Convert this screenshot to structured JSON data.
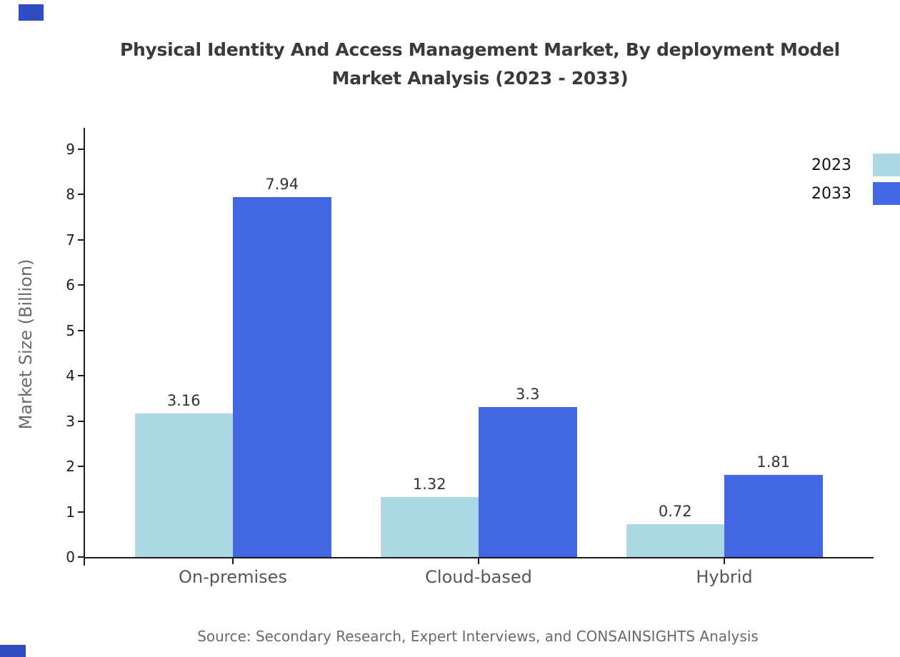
{
  "title_lines": [
    "Physical Identity And Access Management Market, By deployment Model",
    "Market Analysis (2023 - 2033)"
  ],
  "source_note": "Source: Secondary Research, Expert Interviews, and CONSAINSIGHTS Analysis",
  "legend": [
    {
      "label": "2023",
      "color": "#ADD8E6"
    },
    {
      "label": "2033",
      "color": "#4467E3"
    }
  ],
  "accent_color": "#2F4DC0",
  "chart_data": {
    "type": "bar",
    "title": "Physical Identity And Access Management Market, By deployment Model Market Analysis (2023 - 2033)",
    "categories": [
      "On-premises",
      "Cloud-based",
      "Hybrid"
    ],
    "series": [
      {
        "name": "2023",
        "color": "#ADD8E6",
        "values": [
          3.16,
          1.32,
          0.72
        ]
      },
      {
        "name": "2033",
        "color": "#4467E3",
        "values": [
          7.94,
          3.3,
          1.81
        ]
      }
    ],
    "xlabel": "",
    "ylabel": "Market Size (Billion)",
    "ylim": [
      0,
      9.52
    ],
    "yticks": [
      0,
      1,
      2,
      3,
      4,
      5,
      6,
      7,
      8,
      9
    ],
    "grid": false,
    "legend_position": "upper-right",
    "bar_value_labels": true
  }
}
